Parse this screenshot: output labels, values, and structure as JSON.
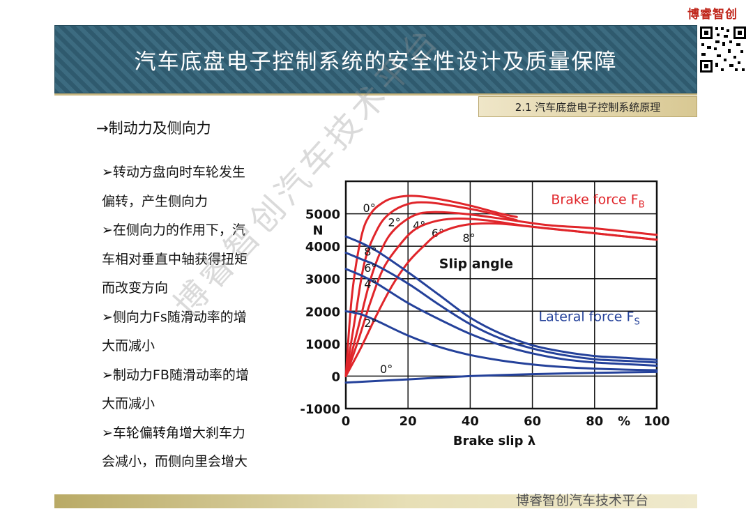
{
  "brand": "博睿智创",
  "title": "汽车底盘电子控制系统的安全性设计及质量保障",
  "section_tag": "2.1 汽车底盘电子控制系统原理",
  "heading": "→制动力及侧向力",
  "bullets": [
    "➢转动方盘向时车轮发生",
    "偏转，产生侧向力",
    "➢在侧向力的作用下，汽",
    "车相对垂直中轴获得扭矩",
    "而改变方向",
    "➢侧向力Fs随滑动率的增",
    "大而减小",
    "➢制动力FB随滑动率的增",
    "大而减小",
    "➢车轮偏转角增大刹车力",
    "会减小，而侧向里会增大"
  ],
  "footer_text": "博睿智创汽车技术平台",
  "watermark": "博睿智创汽车技术平台",
  "colors": {
    "brake": "#e0252a",
    "lateral": "#24419a",
    "banner": "#2f5a6e",
    "brand": "#c0261b"
  },
  "chart_data": {
    "type": "line",
    "xlabel": "Brake slip λ",
    "ylabel": "N",
    "x_unit_label": "%",
    "xlim": [
      0,
      100
    ],
    "ylim": [
      -1000,
      6000
    ],
    "x_ticks": [
      0,
      20,
      40,
      60,
      80,
      100
    ],
    "y_ticks": [
      -1000,
      0,
      1000,
      2000,
      3000,
      4000,
      5000
    ],
    "y_tick_labels": [
      "-1000",
      "0",
      "1000",
      "2000",
      "3000",
      "4000",
      "5000"
    ],
    "x_tick_labels": [
      "0",
      "20",
      "40",
      "60",
      "80",
      "100"
    ],
    "grid": true,
    "annotation": "Slip angle",
    "groups": [
      {
        "label_main": "Brake force F",
        "label_sub": "B",
        "color": "#e0252a",
        "series": [
          {
            "name": "0°",
            "x": [
              0,
              2,
              5,
              8,
              12,
              16,
              22,
              30,
              40,
              50,
              55
            ],
            "y": [
              0,
              2500,
              4300,
              5000,
              5350,
              5500,
              5550,
              5450,
              5250,
              5000,
              4900
            ]
          },
          {
            "name": "2°",
            "x": [
              0,
              3,
              6,
              10,
              14,
              20,
              26,
              34,
              45,
              55
            ],
            "y": [
              0,
              1800,
              3500,
              4500,
              5000,
              5300,
              5350,
              5250,
              5050,
              4800
            ]
          },
          {
            "name": "4°",
            "x": [
              0,
              4,
              8,
              12,
              16,
              22,
              28,
              38,
              50,
              65,
              80,
              100
            ],
            "y": [
              0,
              1500,
              3000,
              4000,
              4550,
              4950,
              5050,
              5000,
              4850,
              4650,
              4550,
              4350
            ]
          },
          {
            "name": "6°",
            "x": [
              0,
              4,
              8,
              12,
              17,
              22,
              28,
              35,
              45,
              60,
              80,
              100
            ],
            "y": [
              0,
              1100,
              2300,
              3300,
              4000,
              4500,
              4750,
              4850,
              4800,
              4600,
              4400,
              4200
            ]
          },
          {
            "name": "8°",
            "x": [
              0,
              5,
              10,
              15,
              20,
              25,
              30,
              38,
              48,
              60,
              80,
              100
            ],
            "y": [
              0,
              900,
              1900,
              2800,
              3500,
              4000,
              4400,
              4650,
              4700,
              4600,
              4400,
              4200
            ]
          }
        ]
      },
      {
        "label_main": "Lateral force F",
        "label_sub": "S",
        "color": "#24419a",
        "series": [
          {
            "name": "8°",
            "x": [
              0,
              5,
              10,
              20,
              30,
              40,
              50,
              60,
              70,
              80,
              90,
              100
            ],
            "y": [
              4300,
              4100,
              3850,
              3200,
              2500,
              1800,
              1300,
              950,
              750,
              620,
              560,
              500
            ]
          },
          {
            "name": "6°",
            "x": [
              0,
              5,
              10,
              20,
              30,
              40,
              50,
              60,
              70,
              80,
              90,
              100
            ],
            "y": [
              3800,
              3600,
              3400,
              2850,
              2200,
              1600,
              1150,
              850,
              650,
              520,
              470,
              420
            ]
          },
          {
            "name": "4°",
            "x": [
              0,
              5,
              10,
              20,
              30,
              40,
              50,
              60,
              70,
              80,
              90,
              100
            ],
            "y": [
              3300,
              3100,
              2850,
              2250,
              1750,
              1300,
              950,
              700,
              520,
              420,
              370,
              320
            ]
          },
          {
            "name": "2°",
            "x": [
              0,
              5,
              10,
              20,
              30,
              40,
              50,
              60,
              70,
              80,
              90,
              100
            ],
            "y": [
              2000,
              1900,
              1700,
              1250,
              900,
              650,
              480,
              360,
              280,
              230,
              200,
              180
            ]
          },
          {
            "name": "0°",
            "x": [
              0,
              20,
              40,
              60,
              80,
              100
            ],
            "y": [
              -200,
              -100,
              0,
              60,
              100,
              130
            ]
          }
        ]
      }
    ]
  }
}
